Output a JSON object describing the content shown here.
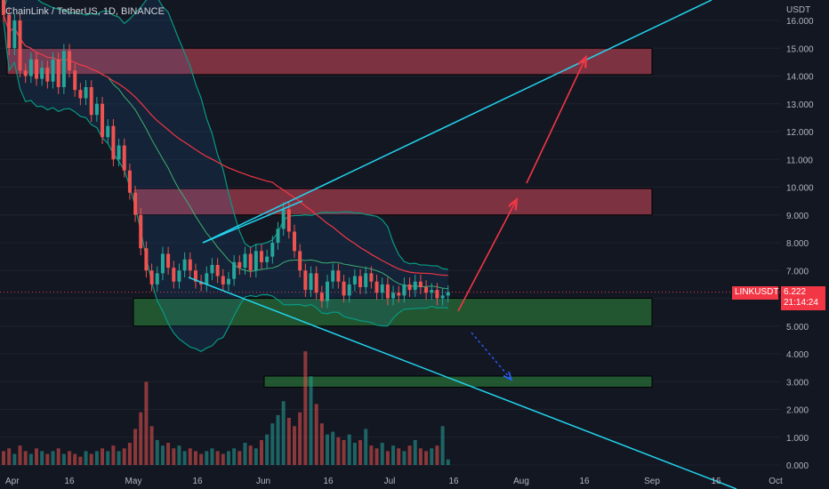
{
  "header": {
    "title": "ChainLink / TetherUS, 1D, BINANCE"
  },
  "chart_data": {
    "type": "candlestick",
    "symbol": "LINKUSDT",
    "quote_currency_label": "USDT",
    "ylim": [
      0,
      16.5
    ],
    "y_ticks": [
      "16.000",
      "15.000",
      "14.000",
      "13.000",
      "12.000",
      "11.000",
      "10.000",
      "9.000",
      "8.000",
      "7.000",
      "6.000",
      "5.000",
      "4.000",
      "3.000",
      "2.000",
      "1.000",
      "0.000"
    ],
    "x_ticks": [
      "Apr",
      "16",
      "May",
      "16",
      "Jun",
      "16",
      "Jul",
      "16",
      "Aug",
      "16",
      "Sep",
      "16",
      "Oct"
    ],
    "last_price": "6.222",
    "countdown": "21:14:24",
    "colors": {
      "up": "#26a69a",
      "down": "#ef5350",
      "band": "#089981",
      "ma": "#f23645",
      "trend": "#22d3ee",
      "arrow": "#f23645",
      "resistance": "#d6485c",
      "support": "#2e8b3e",
      "bg": "#131722",
      "grid": "#1e222d",
      "label": "#b2b5be"
    },
    "zones": [
      {
        "kind": "resistance",
        "top": 15.0,
        "bottom": 14.05
      },
      {
        "kind": "resistance",
        "top": 9.95,
        "bottom": 9.0
      },
      {
        "kind": "support",
        "top": 6.0,
        "bottom": 5.0
      },
      {
        "kind": "support",
        "top": 3.2,
        "bottom": 2.8
      }
    ],
    "candles": [
      [
        17.0,
        16.2
      ],
      [
        16.2,
        15.0
      ],
      [
        15.0,
        16.0
      ],
      [
        16.0,
        14.2
      ],
      [
        14.2,
        14.0
      ],
      [
        14.0,
        14.6
      ],
      [
        14.6,
        13.9
      ],
      [
        13.9,
        14.3
      ],
      [
        14.3,
        13.8
      ],
      [
        13.8,
        14.6
      ],
      [
        14.6,
        13.6
      ],
      [
        13.6,
        14.9
      ],
      [
        14.9,
        14.2
      ],
      [
        14.2,
        13.5
      ],
      [
        13.5,
        13.2
      ],
      [
        13.2,
        13.6
      ],
      [
        13.6,
        12.6
      ],
      [
        12.6,
        13.0
      ],
      [
        13.0,
        11.8
      ],
      [
        11.8,
        12.2
      ],
      [
        12.2,
        11.0
      ],
      [
        11.0,
        11.5
      ],
      [
        11.5,
        10.6
      ],
      [
        10.6,
        9.8
      ],
      [
        9.8,
        9.0
      ],
      [
        9.0,
        7.8
      ],
      [
        7.8,
        7.0
      ],
      [
        7.0,
        6.5
      ],
      [
        6.5,
        6.9
      ],
      [
        6.9,
        7.6
      ],
      [
        7.6,
        7.1
      ],
      [
        7.1,
        6.6
      ],
      [
        6.6,
        7.0
      ],
      [
        7.0,
        7.4
      ],
      [
        7.4,
        7.0
      ],
      [
        7.0,
        6.6
      ],
      [
        6.6,
        6.5
      ],
      [
        6.5,
        6.9
      ],
      [
        6.9,
        7.2
      ],
      [
        7.2,
        6.8
      ],
      [
        6.8,
        6.5
      ],
      [
        6.5,
        6.7
      ],
      [
        6.7,
        7.3
      ],
      [
        7.3,
        7.1
      ],
      [
        7.1,
        7.6
      ],
      [
        7.6,
        7.0
      ],
      [
        7.0,
        7.7
      ],
      [
        7.7,
        7.3
      ],
      [
        7.3,
        7.5
      ],
      [
        7.5,
        8.0
      ],
      [
        8.0,
        8.5
      ],
      [
        8.5,
        9.2
      ],
      [
        9.2,
        8.4
      ],
      [
        8.4,
        7.7
      ],
      [
        7.7,
        7.0
      ],
      [
        7.0,
        6.3
      ],
      [
        6.3,
        6.9
      ],
      [
        6.9,
        6.2
      ],
      [
        6.2,
        5.9
      ],
      [
        5.9,
        6.6
      ],
      [
        6.6,
        7.0
      ],
      [
        7.0,
        6.6
      ],
      [
        6.6,
        6.1
      ],
      [
        6.1,
        6.5
      ],
      [
        6.5,
        6.8
      ],
      [
        6.8,
        6.4
      ],
      [
        6.4,
        6.9
      ],
      [
        6.9,
        6.6
      ],
      [
        6.6,
        6.2
      ],
      [
        6.2,
        6.5
      ],
      [
        6.5,
        6.0
      ],
      [
        6.0,
        6.2
      ],
      [
        6.2,
        6.1
      ],
      [
        6.1,
        6.5
      ],
      [
        6.5,
        6.3
      ],
      [
        6.3,
        6.6
      ],
      [
        6.6,
        6.4
      ],
      [
        6.4,
        6.2
      ],
      [
        6.2,
        6.3
      ],
      [
        6.3,
        6.0
      ],
      [
        6.0,
        6.1
      ],
      [
        6.1,
        6.22
      ]
    ],
    "volumes": [
      0.5,
      0.6,
      0.4,
      0.7,
      0.5,
      0.4,
      0.6,
      0.5,
      0.4,
      0.5,
      0.6,
      0.4,
      0.5,
      0.4,
      0.3,
      0.5,
      0.4,
      0.5,
      0.6,
      0.5,
      0.7,
      0.5,
      0.6,
      0.8,
      1.3,
      1.9,
      3.0,
      1.4,
      0.9,
      0.7,
      0.8,
      0.6,
      0.7,
      0.5,
      0.6,
      0.5,
      0.4,
      0.5,
      0.6,
      0.5,
      0.4,
      0.5,
      0.6,
      0.5,
      0.8,
      0.7,
      0.6,
      0.9,
      1.1,
      1.5,
      1.8,
      2.3,
      1.7,
      1.4,
      1.9,
      4.1,
      3.2,
      2.2,
      1.5,
      1.1,
      1.2,
      1.0,
      0.9,
      1.1,
      0.8,
      0.9,
      1.3,
      0.7,
      0.6,
      0.8,
      0.5,
      0.7,
      0.6,
      0.5,
      0.7,
      0.9,
      0.6,
      0.5,
      0.6,
      0.7,
      1.4,
      0.2
    ]
  }
}
